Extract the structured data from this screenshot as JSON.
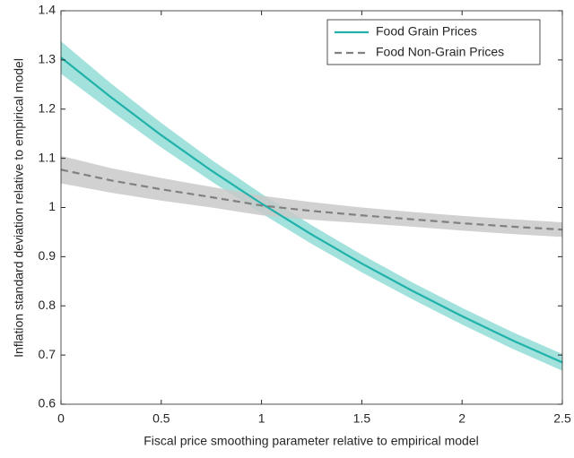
{
  "chart_data": {
    "type": "line",
    "xlabel": "Fiscal price smoothing parameter relative to empirical model",
    "ylabel": "Inflation standard deviation relative to empirical model",
    "x": [
      0,
      0.25,
      0.5,
      0.75,
      1,
      1.25,
      1.5,
      1.75,
      2,
      2.25,
      2.5
    ],
    "series": [
      {
        "name": "Food Grain Prices",
        "color": "#20b2aa",
        "band_color": "#92dcd6",
        "dashed": false,
        "values": [
          1.305,
          1.224,
          1.147,
          1.075,
          1.008,
          0.945,
          0.886,
          0.831,
          0.779,
          0.73,
          0.685
        ],
        "upper": [
          1.338,
          1.252,
          1.172,
          1.097,
          1.028,
          0.964,
          0.904,
          0.848,
          0.796,
          0.747,
          0.702
        ],
        "lower": [
          1.272,
          1.196,
          1.122,
          1.053,
          0.988,
          0.926,
          0.868,
          0.814,
          0.762,
          0.713,
          0.668
        ]
      },
      {
        "name": "Food Non-Grain Prices",
        "color": "#808080",
        "band_color": "#c9c9c9",
        "dashed": true,
        "values": [
          1.077,
          1.055,
          1.037,
          1.021,
          1.004,
          0.993,
          0.984,
          0.976,
          0.968,
          0.961,
          0.955
        ],
        "upper": [
          1.105,
          1.08,
          1.06,
          1.042,
          1.024,
          1.011,
          1.0,
          0.991,
          0.983,
          0.976,
          0.97
        ],
        "lower": [
          1.049,
          1.03,
          1.014,
          1.0,
          0.984,
          0.975,
          0.968,
          0.961,
          0.953,
          0.946,
          0.94
        ]
      }
    ],
    "xlim": [
      0,
      2.5
    ],
    "xticks": [
      0,
      0.5,
      1,
      1.5,
      2,
      2.5
    ],
    "ylim": [
      0.6,
      1.4
    ],
    "yticks": [
      0.6,
      0.7,
      0.8,
      0.9,
      1,
      1.1,
      1.2,
      1.3,
      1.4
    ],
    "grid": false,
    "legend": "top-right"
  }
}
